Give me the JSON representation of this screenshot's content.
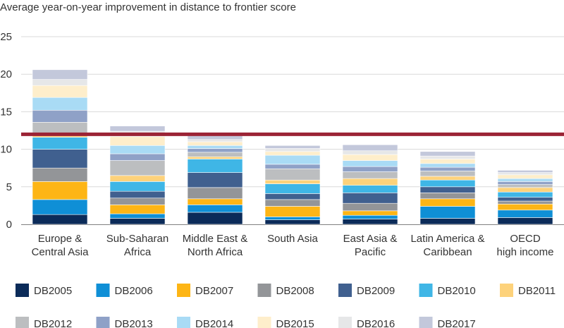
{
  "chart_data": {
    "type": "bar",
    "stacked": true,
    "title": "Average year-on-year improvement in distance to frontier score",
    "xlabel": "",
    "ylabel": "",
    "ylim": [
      0,
      25
    ],
    "yticks": [
      0,
      5,
      10,
      15,
      20,
      25
    ],
    "grid": true,
    "legend_position": "bottom",
    "categories": [
      [
        "Europe &",
        "Central Asia"
      ],
      [
        "Sub-Saharan",
        "Africa"
      ],
      [
        "Middle East &",
        "North Africa"
      ],
      [
        "South Asia"
      ],
      [
        "East Asia &",
        "Pacific"
      ],
      [
        "Latin America &",
        "Caribbean"
      ],
      [
        "OECD",
        "high income"
      ]
    ],
    "reference_line": {
      "value": 12,
      "color": "#9b2335"
    },
    "series": [
      {
        "name": "DB2005",
        "color": "#0b2b59",
        "values": [
          1.3,
          0.8,
          1.6,
          0.6,
          0.7,
          0.8,
          0.9
        ]
      },
      {
        "name": "DB2006",
        "color": "#0f8fd6",
        "values": [
          2.0,
          0.6,
          1.0,
          0.4,
          0.5,
          1.6,
          1.0
        ]
      },
      {
        "name": "DB2007",
        "color": "#fdb515",
        "values": [
          2.4,
          1.2,
          0.8,
          1.4,
          0.6,
          1.0,
          0.8
        ]
      },
      {
        "name": "DB2008",
        "color": "#939598",
        "values": [
          1.8,
          0.9,
          1.5,
          0.9,
          1.0,
          0.8,
          0.4
        ]
      },
      {
        "name": "DB2009",
        "color": "#40608f",
        "values": [
          2.5,
          0.9,
          2.0,
          0.8,
          1.4,
          0.8,
          0.5
        ]
      },
      {
        "name": "DB2010",
        "color": "#3fb6e6",
        "values": [
          1.6,
          1.3,
          1.8,
          1.3,
          1.0,
          0.9,
          0.7
        ]
      },
      {
        "name": "DB2011",
        "color": "#fdd27b",
        "values": [
          0.5,
          0.8,
          0.3,
          0.5,
          0.9,
          0.5,
          0.6
        ]
      },
      {
        "name": "DB2012",
        "color": "#bcbec0",
        "values": [
          1.5,
          2.0,
          0.6,
          1.5,
          0.9,
          0.7,
          0.4
        ]
      },
      {
        "name": "DB2013",
        "color": "#8fa1c7",
        "values": [
          1.6,
          0.9,
          0.5,
          0.6,
          0.7,
          0.5,
          0.4
        ]
      },
      {
        "name": "DB2014",
        "color": "#a9dbf5",
        "values": [
          1.7,
          1.1,
          0.4,
          1.2,
          0.8,
          0.5,
          0.4
        ]
      },
      {
        "name": "DB2015",
        "color": "#feeecb",
        "values": [
          1.6,
          1.2,
          0.5,
          0.5,
          0.8,
          0.6,
          0.5
        ]
      },
      {
        "name": "DB2016",
        "color": "#e6e7e8",
        "values": [
          0.8,
          0.7,
          0.3,
          0.4,
          0.5,
          0.4,
          0.3
        ]
      },
      {
        "name": "DB2017",
        "color": "#c3c8db",
        "values": [
          1.3,
          0.7,
          0.5,
          0.4,
          0.8,
          0.6,
          0.3
        ]
      }
    ]
  }
}
